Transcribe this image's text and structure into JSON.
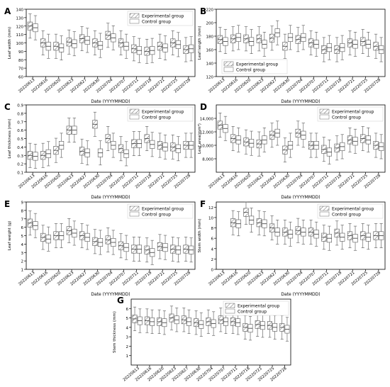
{
  "chart_data": [
    {
      "panel": "A",
      "type": "boxplot",
      "ylabel": "Leaf width (mm)",
      "xlabel": "Date (YYYYMMDD)",
      "categories": [
        "20220613",
        "20220616",
        "20220620",
        "20220623",
        "20220627",
        "20220630",
        "20220704",
        "20220707",
        "20220711",
        "20220718",
        "20220721",
        "20220725",
        "20220728"
      ],
      "ylim": [
        60,
        140
      ],
      "yticks": [
        60,
        70,
        80,
        90,
        100,
        110,
        120,
        130,
        140
      ],
      "legend": [
        "Experimental group",
        "Control group"
      ],
      "series": [
        {
          "name": "Experimental group",
          "medians": [
            120,
            100,
            96,
            101,
            105,
            100,
            109,
            100,
            93,
            90,
            96,
            100,
            92
          ]
        },
        {
          "name": "Control group",
          "medians": [
            118,
            96,
            94,
            99,
            103,
            97,
            106,
            96,
            91,
            91,
            94,
            98,
            93
          ]
        }
      ]
    },
    {
      "panel": "B",
      "type": "boxplot",
      "ylabel": "Leaf length (mm)",
      "xlabel": "Date (YYYYMMDD)",
      "categories": [
        "20220613",
        "20220616",
        "20220620",
        "20220623",
        "20220627",
        "20220630",
        "20220704",
        "20220707",
        "20220711",
        "20220718",
        "20220721",
        "20220725",
        "20220728"
      ],
      "ylim": [
        120,
        220
      ],
      "yticks": [
        120,
        140,
        160,
        180,
        200,
        220
      ],
      "legend": [
        "Experimental group",
        "Control group"
      ],
      "series": [
        {
          "name": "Experimental group",
          "medians": [
            175,
            176,
            176,
            176,
            177,
            165,
            175,
            170,
            160,
            160,
            170,
            172,
            165
          ]
        },
        {
          "name": "Control group",
          "medians": [
            172,
            178,
            172,
            168,
            185,
            178,
            178,
            168,
            163,
            163,
            168,
            168,
            160
          ]
        }
      ]
    },
    {
      "panel": "C",
      "type": "boxplot",
      "ylabel": "Leaf thickness (mm)",
      "xlabel": "Date (YYYYMMDD)",
      "categories": [
        "20220613",
        "20220616",
        "20220620",
        "20220623",
        "20220627",
        "20220630",
        "20220704",
        "20220707",
        "20220711",
        "20220718",
        "20220721",
        "20220725",
        "20220728"
      ],
      "ylim": [
        0.1,
        0.9
      ],
      "yticks": [
        0.1,
        0.2,
        0.3,
        0.4,
        0.5,
        0.6,
        0.7,
        0.8,
        0.9
      ],
      "legend": [
        "Experimental group",
        "Control group"
      ],
      "series": [
        {
          "name": "Experimental group",
          "medians": [
            0.3,
            0.3,
            0.36,
            0.6,
            0.35,
            0.67,
            0.5,
            0.38,
            0.44,
            0.5,
            0.42,
            0.4,
            0.42
          ]
        },
        {
          "name": "Control group",
          "medians": [
            0.29,
            0.32,
            0.42,
            0.6,
            0.33,
            0.33,
            0.42,
            0.32,
            0.44,
            0.43,
            0.4,
            0.38,
            0.42
          ]
        }
      ]
    },
    {
      "panel": "D",
      "type": "boxplot",
      "ylabel": "Leaf area(mm²)",
      "xlabel": "Date (YYYYMMDD)",
      "categories": [
        "20220613",
        "20220616",
        "20220620",
        "20220623",
        "20220627",
        "20220630",
        "20220704",
        "20220707",
        "20220711",
        "20220718",
        "20220721",
        "20220725",
        "20220728"
      ],
      "ylim": [
        6000,
        16000
      ],
      "yticks": [
        8000,
        10000,
        12000,
        14000
      ],
      "legend": [
        "Experimental group",
        "Control group"
      ],
      "series": [
        {
          "name": "Experimental group",
          "medians": [
            13000,
            11000,
            10500,
            10200,
            11500,
            9300,
            11800,
            10000,
            9400,
            9600,
            10800,
            11000,
            10000
          ]
        },
        {
          "name": "Control group",
          "medians": [
            12500,
            10800,
            10300,
            10800,
            11800,
            10000,
            11500,
            10000,
            9000,
            9800,
            10600,
            10800,
            9800
          ]
        }
      ]
    },
    {
      "panel": "E",
      "type": "boxplot",
      "ylabel": "Leaf weight (g)",
      "xlabel": "Date (YYYYMMDD)",
      "categories": [
        "20220613",
        "20220616",
        "20220620",
        "20220623",
        "20220627",
        "20220630",
        "20220704",
        "20220707",
        "20220711",
        "20220718",
        "20220721",
        "20220725",
        "20220728"
      ],
      "ylim": [
        1,
        9
      ],
      "yticks": [
        1,
        2,
        3,
        4,
        5,
        6,
        7,
        8,
        9
      ],
      "legend": [
        "Experimental group",
        "Control group"
      ],
      "series": [
        {
          "name": "Experimental group",
          "medians": [
            6.5,
            4.8,
            5.0,
            5.6,
            5.0,
            4.3,
            4.5,
            3.8,
            3.4,
            3.3,
            3.7,
            3.4,
            3.4
          ]
        },
        {
          "name": "Control group",
          "medians": [
            6.2,
            4.6,
            5.0,
            5.3,
            4.8,
            4.2,
            4.2,
            3.6,
            3.4,
            3.0,
            3.6,
            3.3,
            3.3
          ]
        }
      ]
    },
    {
      "panel": "F",
      "type": "boxplot",
      "ylabel": "Stem width (mm)",
      "xlabel": "Date (YYYYMMDD)",
      "categories": [
        "20220613",
        "20220616",
        "20220620",
        "20220623",
        "20220627",
        "20220630",
        "20220704",
        "20220707",
        "20220711",
        "20220718",
        "20220721",
        "20220725",
        "20220728"
      ],
      "ylim": [
        0,
        13
      ],
      "yticks": [
        0,
        2,
        4,
        6,
        8,
        10,
        12
      ],
      "legend": [
        "Experimental group",
        "Control group"
      ],
      "series": [
        {
          "name": "Experimental group",
          "medians": [
            null,
            9.0,
            11.0,
            9.0,
            8.0,
            7.2,
            7.5,
            7.2,
            6.2,
            7.0,
            6.5,
            6.5,
            6.5
          ]
        },
        {
          "name": "Control group",
          "medians": [
            null,
            8.8,
            9.5,
            8.8,
            7.2,
            6.8,
            7.2,
            6.8,
            6.0,
            6.2,
            6.0,
            6.2,
            6.5
          ]
        }
      ]
    },
    {
      "panel": "G",
      "type": "boxplot",
      "ylabel": "Stem thickness (mm)",
      "xlabel": "Date (YYYYMMDD)",
      "categories": [
        "20220613",
        "20220616",
        "20220620",
        "20220623",
        "20220627",
        "20220630",
        "20220704",
        "20220707",
        "20220711",
        "20220718",
        "20220721",
        "20220725",
        "20220728"
      ],
      "ylim": [
        0,
        7
      ],
      "yticks": [
        1,
        2,
        3,
        4,
        5,
        6
      ],
      "legend": [
        "Experimental group",
        "Control group"
      ],
      "series": [
        {
          "name": "Experimental group",
          "medians": [
            4.9,
            4.7,
            4.6,
            5.0,
            4.8,
            4.5,
            4.6,
            4.8,
            4.6,
            4.0,
            4.3,
            4.2,
            4.0
          ]
        },
        {
          "name": "Control group",
          "medians": [
            4.7,
            4.6,
            4.5,
            4.8,
            4.6,
            4.3,
            4.4,
            4.6,
            4.5,
            3.9,
            4.2,
            4.0,
            3.8
          ]
        }
      ]
    }
  ]
}
